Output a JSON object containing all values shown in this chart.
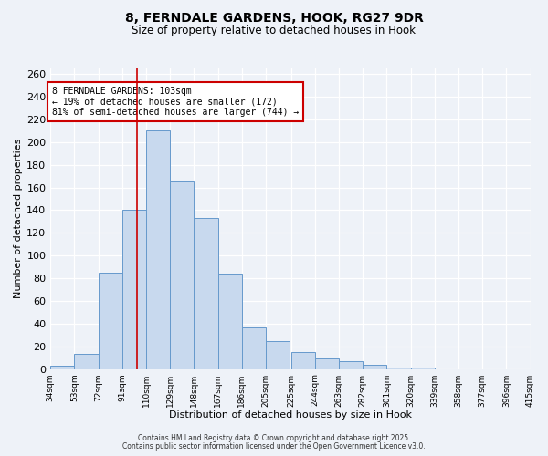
{
  "title_line1": "8, FERNDALE GARDENS, HOOK, RG27 9DR",
  "title_line2": "Size of property relative to detached houses in Hook",
  "xlabel": "Distribution of detached houses by size in Hook",
  "ylabel": "Number of detached properties",
  "bin_labels": [
    "34sqm",
    "53sqm",
    "72sqm",
    "91sqm",
    "110sqm",
    "129sqm",
    "148sqm",
    "167sqm",
    "186sqm",
    "205sqm",
    "225sqm",
    "244sqm",
    "263sqm",
    "282sqm",
    "301sqm",
    "320sqm",
    "339sqm",
    "358sqm",
    "377sqm",
    "396sqm",
    "415sqm"
  ],
  "bin_edges": [
    34,
    53,
    72,
    91,
    110,
    129,
    148,
    167,
    186,
    205,
    225,
    244,
    263,
    282,
    301,
    320,
    339,
    358,
    377,
    396,
    415
  ],
  "bar_heights": [
    3,
    13,
    85,
    140,
    210,
    165,
    133,
    84,
    37,
    25,
    15,
    9,
    7,
    4,
    1,
    1,
    0,
    0,
    0,
    0
  ],
  "bar_color": "#c8d9ee",
  "bar_edgecolor": "#6699cc",
  "property_line_x": 103,
  "property_line_color": "#cc0000",
  "annotation_text": "8 FERNDALE GARDENS: 103sqm\n← 19% of detached houses are smaller (172)\n81% of semi-detached houses are larger (744) →",
  "annotation_bbox_edgecolor": "#cc0000",
  "annotation_bbox_facecolor": "#ffffff",
  "ylim": [
    0,
    265
  ],
  "yticks": [
    0,
    20,
    40,
    60,
    80,
    100,
    120,
    140,
    160,
    180,
    200,
    220,
    240,
    260
  ],
  "footer_line1": "Contains HM Land Registry data © Crown copyright and database right 2025.",
  "footer_line2": "Contains public sector information licensed under the Open Government Licence v3.0.",
  "background_color": "#eef2f8"
}
